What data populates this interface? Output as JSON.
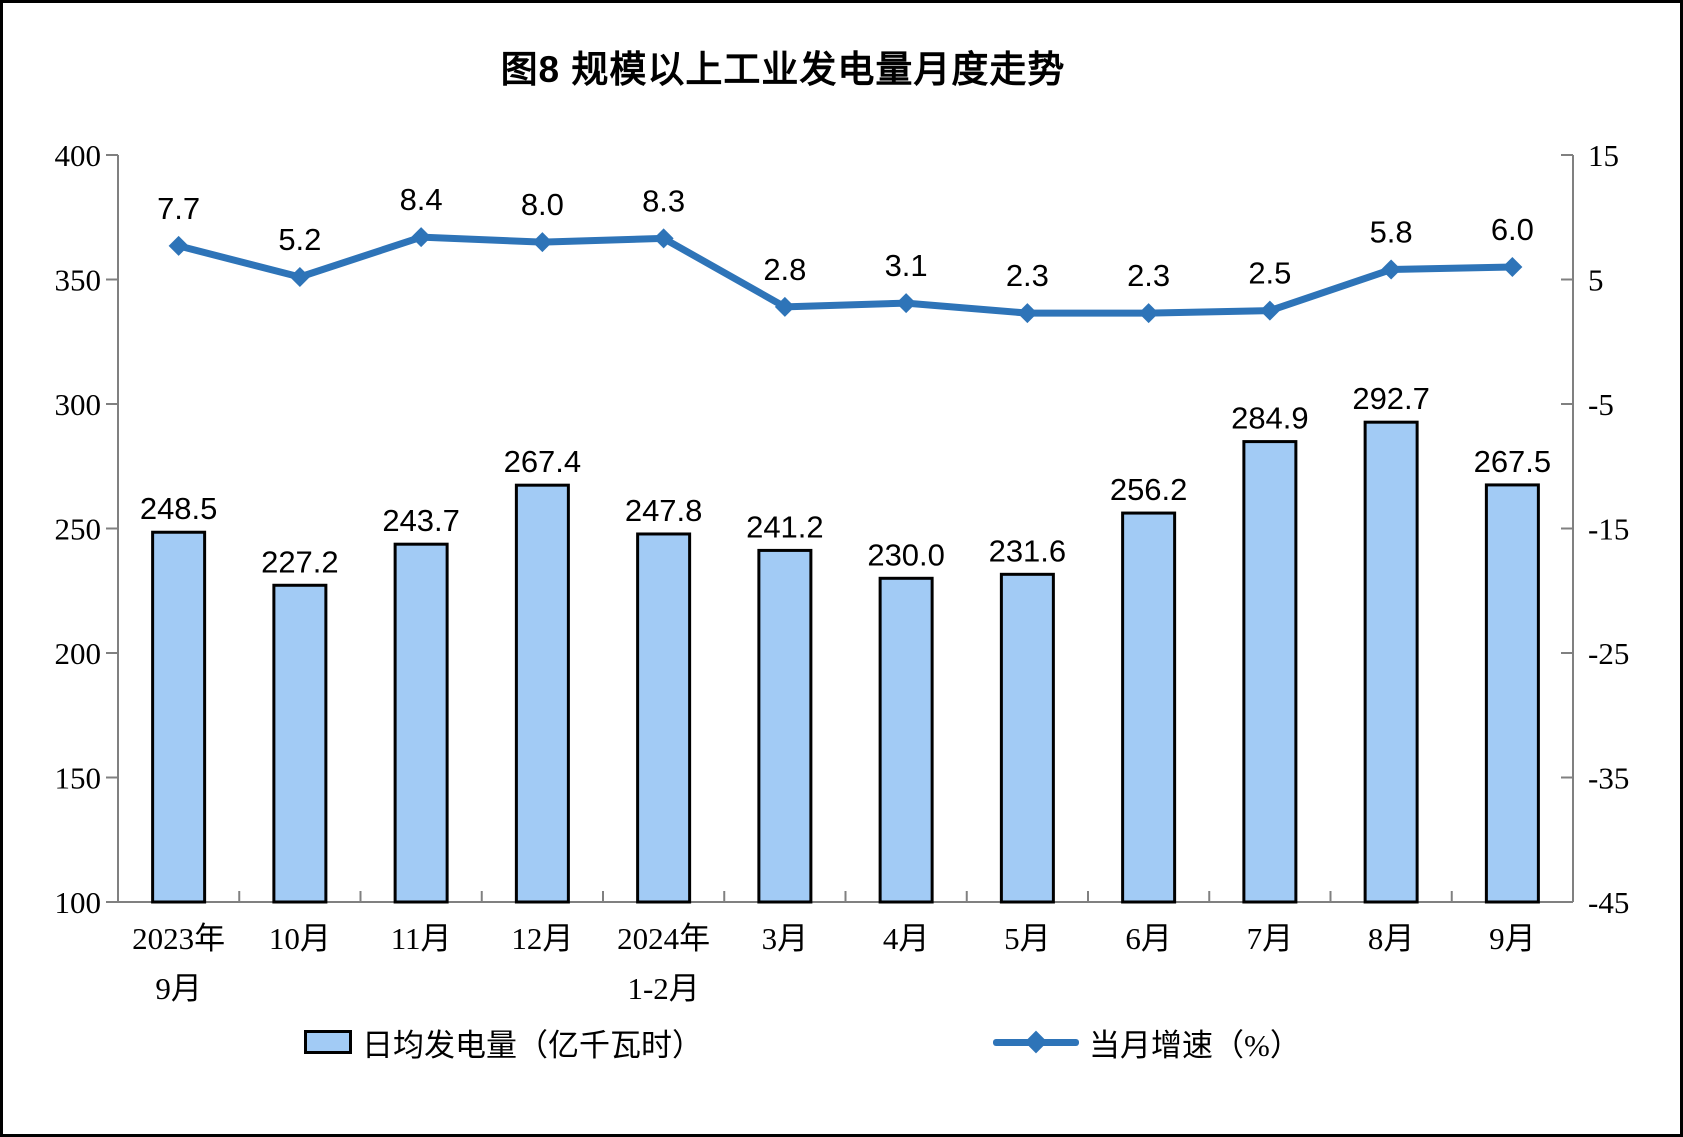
{
  "title": "图8 规模以上工业发电量月度走势",
  "legend": {
    "items": [
      {
        "label": "日均发电量（亿千瓦时）",
        "type": "bar"
      },
      {
        "label": "当月增速（%）",
        "type": "line"
      }
    ]
  },
  "chart_data": {
    "type": "bar",
    "subtype": "bar+line combo, dual y-axis",
    "title": "图8 规模以上工业发电量月度走势",
    "categories": [
      [
        "2023年",
        "9月"
      ],
      [
        "10月"
      ],
      [
        "11月"
      ],
      [
        "12月"
      ],
      [
        "2024年",
        "1-2月"
      ],
      [
        "3月"
      ],
      [
        "4月"
      ],
      [
        "5月"
      ],
      [
        "6月"
      ],
      [
        "7月"
      ],
      [
        "8月"
      ],
      [
        "9月"
      ]
    ],
    "series": [
      {
        "name": "日均发电量（亿千瓦时）",
        "type": "bar",
        "axis": "left",
        "values": [
          248.5,
          227.2,
          243.7,
          267.4,
          247.8,
          241.2,
          230.0,
          231.6,
          256.2,
          284.9,
          292.7,
          267.5
        ],
        "fill_color": "#A2CBF5",
        "border_color": "#000000"
      },
      {
        "name": "当月增速（%）",
        "type": "line",
        "axis": "right",
        "values": [
          7.7,
          5.2,
          8.4,
          8.0,
          8.3,
          2.8,
          3.1,
          2.3,
          2.3,
          2.5,
          5.8,
          6.0
        ],
        "color": "#2E74B8",
        "marker": "diamond"
      }
    ],
    "left_axis": {
      "min": 100,
      "max": 400,
      "tick_step": 50,
      "ticks": [
        400,
        350,
        300,
        250,
        200,
        150,
        100
      ]
    },
    "right_axis": {
      "min": -45,
      "max": 15,
      "tick_step": 10,
      "ticks": [
        15,
        5,
        -5,
        -15,
        -25,
        -35,
        -45
      ]
    },
    "grid": false,
    "legend_position": "bottom",
    "data_labels": true,
    "axis_color": "#808080",
    "label_color": "#000000"
  }
}
